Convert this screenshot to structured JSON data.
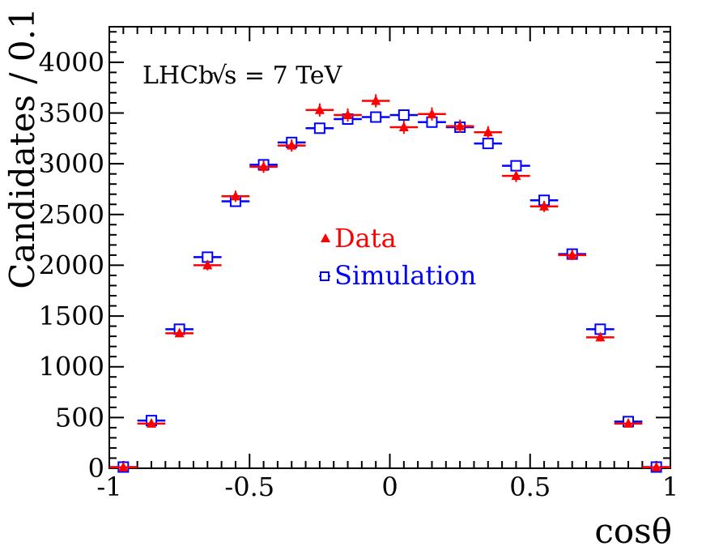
{
  "chart_data": {
    "type": "scatter",
    "title": "",
    "xlabel": "cosθ",
    "ylabel": "Candidates / 0.1",
    "xlim": [
      -1,
      1
    ],
    "ylim": [
      0,
      4350
    ],
    "grid": false,
    "legend_position": "center",
    "x_ticks": [
      -1,
      -0.5,
      0,
      0.5,
      1
    ],
    "x_tick_labels": [
      "-1",
      "-0.5",
      "0",
      "0.5",
      "1"
    ],
    "y_ticks": [
      0,
      500,
      1000,
      1500,
      2000,
      2500,
      3000,
      3500,
      4000
    ],
    "y_tick_labels": [
      "0",
      "500",
      "1000",
      "1500",
      "2000",
      "2500",
      "3000",
      "3500",
      "4000"
    ],
    "annotation": {
      "experiment": "LHCb",
      "sqrt_symbol": "√",
      "energy": "s = 7 TeV"
    },
    "bin_edges": [
      -1,
      -0.9,
      -0.8,
      -0.7,
      -0.6,
      -0.5,
      -0.4,
      -0.3,
      -0.2,
      -0.1,
      0,
      0.1,
      0.2,
      0.3,
      0.4,
      0.5,
      0.6,
      0.7,
      0.8,
      0.9,
      1
    ],
    "x": [
      -0.95,
      -0.85,
      -0.75,
      -0.65,
      -0.55,
      -0.45,
      -0.35,
      -0.25,
      -0.15,
      -0.05,
      0.05,
      0.15,
      0.25,
      0.35,
      0.45,
      0.55,
      0.65,
      0.75,
      0.85,
      0.95
    ],
    "series": [
      {
        "name": "Data",
        "color": "#ff0000",
        "marker": "triangle",
        "values": [
          10,
          440,
          1330,
          2000,
          2680,
          2970,
          3180,
          3530,
          3480,
          3620,
          3360,
          3490,
          3370,
          3310,
          2880,
          2580,
          2100,
          1290,
          440,
          10
        ],
        "errors": [
          5,
          25,
          40,
          50,
          55,
          60,
          60,
          65,
          65,
          65,
          65,
          65,
          65,
          60,
          60,
          55,
          50,
          40,
          25,
          5
        ]
      },
      {
        "name": "Simulation",
        "color": "#0000ff",
        "marker": "open-square",
        "values": [
          12,
          470,
          1370,
          2080,
          2630,
          2990,
          3210,
          3350,
          3440,
          3460,
          3480,
          3410,
          3360,
          3200,
          2980,
          2640,
          2110,
          1370,
          460,
          12
        ],
        "errors": [
          2,
          10,
          15,
          18,
          20,
          20,
          20,
          20,
          20,
          20,
          20,
          20,
          20,
          20,
          20,
          20,
          18,
          15,
          10,
          2
        ]
      }
    ]
  }
}
